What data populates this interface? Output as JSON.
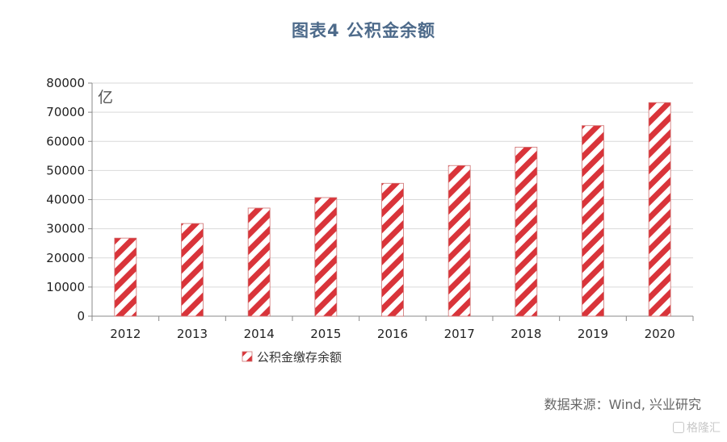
{
  "chart_data": {
    "type": "bar",
    "title": "图表4  公积金余额",
    "unit_label": "亿",
    "categories": [
      "2012",
      "2013",
      "2014",
      "2015",
      "2016",
      "2017",
      "2018",
      "2019",
      "2020"
    ],
    "series": [
      {
        "name": "公积金缴存余额",
        "values": [
          26800,
          31800,
          37100,
          40700,
          45600,
          51700,
          58000,
          65400,
          73300
        ]
      }
    ],
    "ylim": [
      0,
      80000
    ],
    "yticks": [
      0,
      10000,
      20000,
      30000,
      40000,
      50000,
      60000,
      70000,
      80000
    ],
    "grid": true,
    "legend_position": "bottom-left",
    "colors": {
      "bar_stripe": "#d9343a",
      "bar_bg": "#ffffff",
      "bar_border": "#d07070",
      "grid": "#d9d9d9",
      "axis": "#888888"
    }
  },
  "source": "数据来源：Wind, 兴业研究",
  "watermark": "格隆汇"
}
